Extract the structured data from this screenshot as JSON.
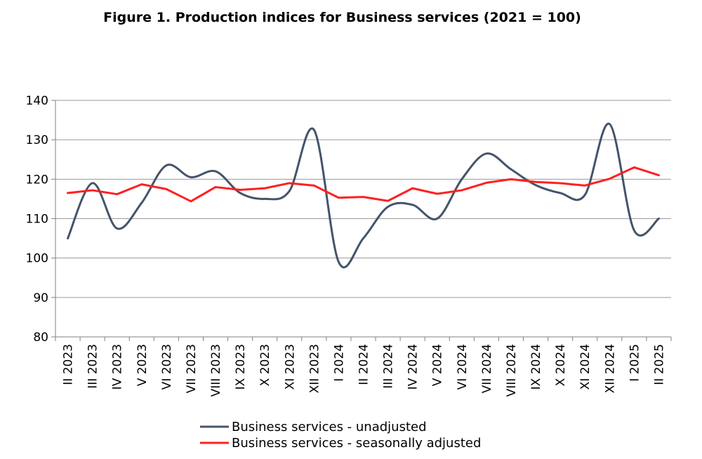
{
  "chart_data": {
    "type": "line",
    "title": "Figure 1. Production indices for Business services (2021 = 100)",
    "xlabel": "",
    "ylabel": "",
    "ylim": [
      80,
      140
    ],
    "yticks": [
      80,
      90,
      100,
      110,
      120,
      130,
      140
    ],
    "grid": true,
    "legend_position": "bottom",
    "categories": [
      "II 2023",
      "III 2023",
      "IV 2023",
      "V 2023",
      "VI 2023",
      "VII 2023",
      "VIII 2023",
      "IX 2023",
      "X 2023",
      "XI 2023",
      "XII 2023",
      "I 2024",
      "II 2024",
      "III 2024",
      "IV 2024",
      "V 2024",
      "VI 2024",
      "VII 2024",
      "VIII 2024",
      "IX 2024",
      "X 2024",
      "XI 2024",
      "XII 2024",
      "I 2025",
      "II 2025"
    ],
    "series": [
      {
        "name": "Business services - unadjusted",
        "color": "#44546a",
        "values": [
          105,
          119,
          107.5,
          114,
          123.5,
          120.5,
          122,
          116.5,
          115,
          117,
          132.5,
          99,
          105,
          113,
          113.5,
          110,
          120,
          126.5,
          122.5,
          118.5,
          116.5,
          116,
          134,
          107,
          110
        ]
      },
      {
        "name": "Business services - seasonally adjusted",
        "color": "#ff2020",
        "values": [
          116.5,
          117.2,
          116.2,
          118.7,
          117.5,
          114.4,
          118,
          117.3,
          117.7,
          119,
          118.4,
          115.3,
          115.5,
          114.5,
          117.7,
          116.3,
          117.2,
          119.1,
          120,
          119.3,
          119,
          118.4,
          120.1,
          123,
          121
        ]
      }
    ]
  }
}
